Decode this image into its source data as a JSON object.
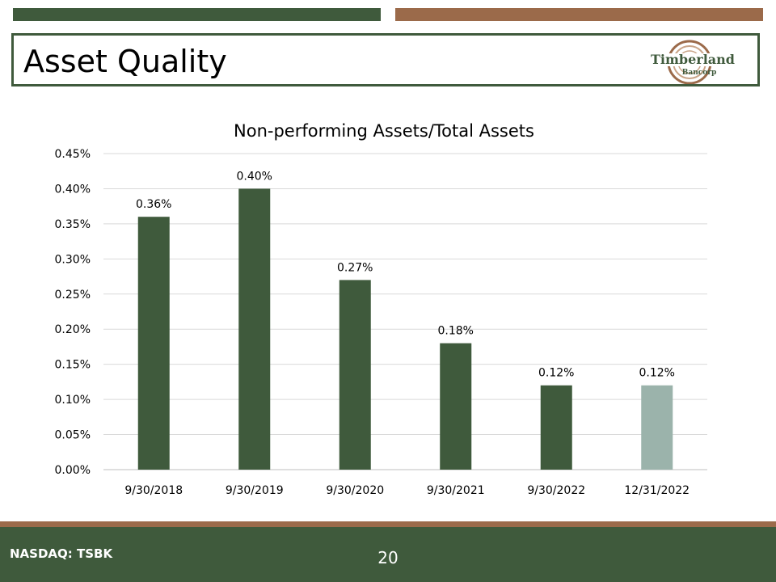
{
  "slide": {
    "title": "Asset Quality",
    "logo_name": "Timberland",
    "logo_sub": "Bancorp",
    "footer_ticker": "NASDAQ: TSBK",
    "page_number": "20"
  },
  "colors": {
    "bar_main": "#3f5a3c",
    "bar_highlight": "#9bb3ab",
    "accent_brown": "#9b6a4a",
    "gridline": "#d9d9d9"
  },
  "chart_data": {
    "type": "bar",
    "title": "Non-performing Assets/Total Assets",
    "categories": [
      "9/30/2018",
      "9/30/2019",
      "9/30/2020",
      "9/30/2021",
      "9/30/2022",
      "12/31/2022"
    ],
    "values": [
      0.36,
      0.4,
      0.27,
      0.18,
      0.12,
      0.12
    ],
    "data_labels": [
      "0.36%",
      "0.40%",
      "0.27%",
      "0.18%",
      "0.12%",
      "0.12%"
    ],
    "yticks": [
      0,
      0.05,
      0.1,
      0.15,
      0.2,
      0.25,
      0.3,
      0.35,
      0.4,
      0.45
    ],
    "ytick_labels": [
      "0.00%",
      "0.05%",
      "0.10%",
      "0.15%",
      "0.20%",
      "0.25%",
      "0.30%",
      "0.35%",
      "0.40%",
      "0.45%"
    ],
    "ylim": [
      0,
      0.45
    ],
    "grid": true,
    "legend": "none",
    "highlight_index": 5
  }
}
